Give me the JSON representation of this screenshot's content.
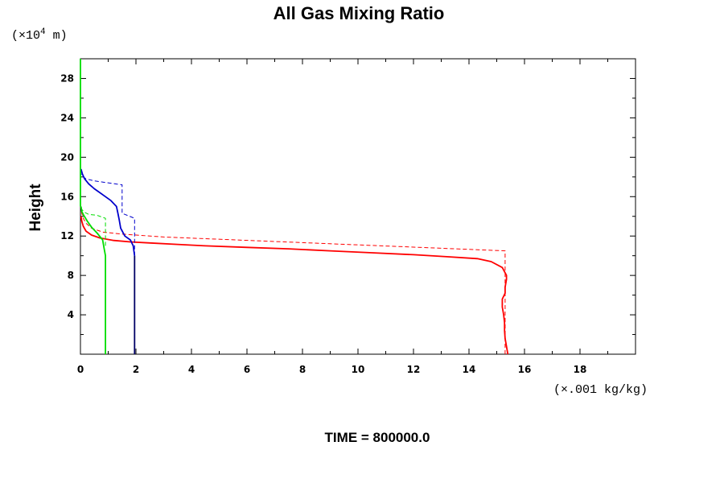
{
  "chart_data": {
    "type": "line",
    "title": "All Gas Mixing Ratio",
    "xlabel": "(×.001 kg/kg)",
    "ylabel": "Height",
    "y_unit_prefix": "(×10",
    "y_unit_exp": "4",
    "y_unit_suffix": " m)",
    "footer": "TIME = 800000.0",
    "xlim": [
      0,
      20
    ],
    "ylim": [
      0,
      30
    ],
    "x_major_ticks": [
      0,
      2,
      4,
      6,
      8,
      10,
      12,
      14,
      16,
      18
    ],
    "y_major_ticks": [
      4,
      8,
      12,
      16,
      20,
      24,
      28
    ],
    "grid": false,
    "legend": "none",
    "series": [
      {
        "color": "#ff0000",
        "style": "solid",
        "points": [
          [
            15.4,
            0
          ],
          [
            15.35,
            0.8
          ],
          [
            15.3,
            1.6
          ],
          [
            15.28,
            2.4
          ],
          [
            15.28,
            3.2
          ],
          [
            15.25,
            4.0
          ],
          [
            15.2,
            4.8
          ],
          [
            15.2,
            5.6
          ],
          [
            15.3,
            6.2
          ],
          [
            15.3,
            6.8
          ],
          [
            15.35,
            7.6
          ],
          [
            15.35,
            8.0
          ],
          [
            15.2,
            8.8
          ],
          [
            14.8,
            9.4
          ],
          [
            14.3,
            9.7
          ],
          [
            13.2,
            9.9
          ],
          [
            12.0,
            10.1
          ],
          [
            10.5,
            10.3
          ],
          [
            9.0,
            10.5
          ],
          [
            7.5,
            10.7
          ],
          [
            6.0,
            10.85
          ],
          [
            4.5,
            11.0
          ],
          [
            3.5,
            11.15
          ],
          [
            2.5,
            11.3
          ],
          [
            1.8,
            11.4
          ],
          [
            1.2,
            11.55
          ],
          [
            0.7,
            11.8
          ],
          [
            0.4,
            12.1
          ],
          [
            0.2,
            12.5
          ],
          [
            0.1,
            13.0
          ],
          [
            0.05,
            13.5
          ],
          [
            0.02,
            14.0
          ]
        ]
      },
      {
        "color": "#ff0000",
        "style": "dashed",
        "points": [
          [
            15.3,
            0
          ],
          [
            15.3,
            10.5
          ],
          [
            3.0,
            11.9
          ],
          [
            1.5,
            12.2
          ],
          [
            0.8,
            12.4
          ],
          [
            0.4,
            12.8
          ],
          [
            0.2,
            13.3
          ],
          [
            0.1,
            13.8
          ],
          [
            0.05,
            14.3
          ],
          [
            0.02,
            14.7
          ]
        ]
      },
      {
        "color": "#0000cc",
        "style": "solid",
        "points": [
          [
            1.95,
            10.0
          ],
          [
            1.9,
            11.0
          ],
          [
            1.8,
            11.6
          ],
          [
            1.6,
            12.0
          ],
          [
            1.45,
            12.8
          ],
          [
            1.4,
            13.6
          ],
          [
            1.35,
            14.3
          ],
          [
            1.3,
            15.0
          ],
          [
            1.1,
            15.6
          ],
          [
            0.8,
            16.2
          ],
          [
            0.5,
            16.8
          ],
          [
            0.3,
            17.3
          ],
          [
            0.15,
            17.8
          ],
          [
            0.07,
            18.3
          ],
          [
            0.02,
            18.8
          ]
        ]
      },
      {
        "color": "#0000cc",
        "style": "dashed",
        "points": [
          [
            1.95,
            10.0
          ],
          [
            1.95,
            13.8
          ],
          [
            1.6,
            14.2
          ],
          [
            1.5,
            14.3
          ],
          [
            1.5,
            17.2
          ],
          [
            0.5,
            17.6
          ],
          [
            0.2,
            17.8
          ],
          [
            0.1,
            18.0
          ],
          [
            0.02,
            18.3
          ]
        ]
      },
      {
        "color": "#000066",
        "style": "solid",
        "points": [
          [
            1.95,
            0
          ],
          [
            1.95,
            10.0
          ]
        ]
      },
      {
        "color": "#00dd00",
        "style": "solid",
        "points": [
          [
            0.9,
            0
          ],
          [
            0.9,
            10.0
          ],
          [
            0.85,
            10.8
          ],
          [
            0.8,
            11.6
          ],
          [
            0.6,
            12.3
          ],
          [
            0.4,
            12.9
          ],
          [
            0.25,
            13.5
          ],
          [
            0.12,
            14.1
          ],
          [
            0.05,
            14.5
          ],
          [
            0.02,
            15.0
          ]
        ]
      },
      {
        "color": "#00dd00",
        "style": "dashed",
        "points": [
          [
            0.9,
            11.0
          ],
          [
            0.9,
            13.8
          ],
          [
            0.6,
            14.1
          ],
          [
            0.3,
            14.2
          ],
          [
            0.15,
            14.4
          ],
          [
            0.05,
            14.7
          ],
          [
            0.02,
            15.0
          ]
        ]
      },
      {
        "color": "#00dd00",
        "style": "solid",
        "points": [
          [
            0,
            15.0
          ],
          [
            0,
            30
          ]
        ]
      }
    ]
  }
}
